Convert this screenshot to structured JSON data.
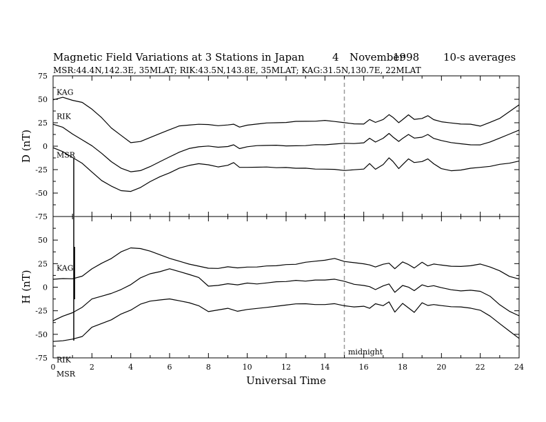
{
  "title": {
    "main": "Magnetic Field Variations at 3 Stations in Japan",
    "date_day": "4",
    "date_month": "November",
    "date_year": "1998",
    "averaging": "10-s averages",
    "stations_line": "MSR:44.4N,142.3E, 35MLAT;   RIK:43.5N,143.8E, 35MLAT;   KAG:31.5N,130.7E, 22MLAT"
  },
  "annotations": {
    "midnight_label": "midnight"
  },
  "chart_data": [
    {
      "type": "line",
      "panel": "D",
      "ylabel": "D (nT)",
      "ylim": [
        -75,
        75
      ],
      "yticks": [
        75,
        50,
        25,
        0,
        -25,
        -50,
        -75
      ],
      "xlim": [
        0,
        24
      ],
      "grid": false,
      "vline": 15,
      "series": [
        {
          "name": "KAG",
          "x": [
            0,
            0.5,
            1,
            1.5,
            2,
            2.5,
            3,
            3.5,
            4,
            4.5,
            5,
            5.5,
            6,
            6.5,
            7,
            7.5,
            8,
            8.5,
            9,
            9.3,
            9.6,
            10,
            10.5,
            11,
            11.5,
            12,
            12.5,
            13,
            13.5,
            14,
            14.5,
            15,
            15.5,
            16,
            16.3,
            16.6,
            17,
            17.3,
            17.5,
            17.8,
            18,
            18.3,
            18.6,
            19,
            19.3,
            19.6,
            20,
            20.5,
            21,
            21.5,
            22,
            22.5,
            23,
            23.5,
            24
          ],
          "y": [
            49,
            52,
            49,
            47,
            40,
            31,
            20,
            12,
            4,
            5,
            9,
            13,
            17,
            21,
            22,
            23,
            23,
            22,
            23,
            24,
            21,
            23,
            24,
            25,
            25,
            25,
            26,
            26,
            26,
            27,
            26,
            25,
            24,
            24,
            29,
            26,
            29,
            34,
            31,
            25,
            28,
            33,
            28,
            29,
            32,
            28,
            26,
            25,
            24,
            24,
            22,
            26,
            30,
            37,
            44
          ]
        },
        {
          "name": "RIK",
          "x": [
            0,
            0.5,
            1,
            1.5,
            2,
            2.5,
            3,
            3.5,
            4,
            4.5,
            5,
            5.5,
            6,
            6.5,
            7,
            7.5,
            8,
            8.5,
            9,
            9.3,
            9.6,
            10,
            10.5,
            11,
            11.5,
            12,
            12.5,
            13,
            13.5,
            14,
            14.5,
            15,
            15.5,
            16,
            16.3,
            16.6,
            17,
            17.3,
            17.5,
            17.8,
            18,
            18.3,
            18.6,
            19,
            19.3,
            19.6,
            20,
            20.5,
            21,
            21.5,
            22,
            22.5,
            23,
            23.5,
            24
          ],
          "y": [
            23,
            20,
            13,
            7,
            1,
            -7,
            -16,
            -23,
            -27,
            -26,
            -22,
            -17,
            -12,
            -7,
            -3,
            -1,
            0,
            -1,
            0,
            2,
            -2,
            0,
            1,
            1,
            1,
            0,
            0,
            0,
            1,
            1,
            2,
            3,
            3,
            4,
            9,
            5,
            9,
            14,
            10,
            5,
            8,
            12,
            8,
            9,
            12,
            8,
            6,
            4,
            3,
            2,
            2,
            5,
            9,
            13,
            17
          ]
        },
        {
          "name": "MSR",
          "x": [
            0,
            0.5,
            1,
            1.5,
            2,
            2.5,
            3,
            3.5,
            4,
            4.5,
            5,
            5.5,
            6,
            6.5,
            7,
            7.5,
            8,
            8.5,
            9,
            9.3,
            9.6,
            10,
            10.5,
            11,
            11.5,
            12,
            12.5,
            13,
            13.5,
            14,
            14.5,
            15,
            15.5,
            16,
            16.3,
            16.6,
            17,
            17.3,
            17.5,
            17.8,
            18,
            18.3,
            18.6,
            19,
            19.3,
            19.6,
            20,
            20.5,
            21,
            21.5,
            22,
            22.5,
            23,
            23.5,
            24
          ],
          "y": [
            -2,
            -6,
            -12,
            -18,
            -27,
            -36,
            -42,
            -47,
            -48,
            -44,
            -38,
            -33,
            -29,
            -24,
            -21,
            -19,
            -20,
            -22,
            -20,
            -17,
            -22,
            -22,
            -22,
            -22,
            -23,
            -23,
            -24,
            -24,
            -25,
            -25,
            -25,
            -26,
            -25,
            -24,
            -18,
            -24,
            -19,
            -12,
            -16,
            -24,
            -20,
            -14,
            -18,
            -17,
            -14,
            -19,
            -24,
            -26,
            -25,
            -23,
            -22,
            -21,
            -19,
            -18,
            -16
          ]
        }
      ]
    },
    {
      "type": "line",
      "panel": "H",
      "ylabel": "H (nT)",
      "ylim": [
        -75,
        75
      ],
      "yticks": [
        75,
        50,
        25,
        0,
        -25,
        -50,
        -75
      ],
      "xlim": [
        0,
        24
      ],
      "xlabel": "Universal Time",
      "xticks": [
        0,
        2,
        4,
        6,
        8,
        10,
        12,
        14,
        16,
        18,
        20,
        22,
        24
      ],
      "grid": false,
      "vline": 15,
      "series": [
        {
          "name": "KAG",
          "x": [
            0,
            0.5,
            1,
            1.5,
            2,
            2.5,
            3,
            3.5,
            4,
            4.5,
            5,
            5.5,
            6,
            6.5,
            7,
            7.5,
            8,
            8.5,
            9,
            9.5,
            10,
            10.5,
            11,
            11.5,
            12,
            12.5,
            13,
            13.5,
            14,
            14.5,
            15,
            15.5,
            16,
            16.3,
            16.6,
            17,
            17.3,
            17.6,
            18,
            18.3,
            18.6,
            19,
            19.3,
            19.6,
            20,
            20.5,
            21,
            21.5,
            22,
            22.5,
            23,
            23.5,
            24
          ],
          "y": [
            8,
            9,
            9,
            12,
            20,
            26,
            31,
            38,
            42,
            41,
            38,
            34,
            30,
            27,
            24,
            22,
            20,
            20,
            22,
            21,
            22,
            22,
            23,
            23,
            24,
            24,
            26,
            27,
            28,
            30,
            27,
            26,
            25,
            24,
            22,
            25,
            26,
            20,
            27,
            24,
            20,
            26,
            22,
            24,
            23,
            22,
            22,
            23,
            25,
            22,
            18,
            12,
            9
          ]
        },
        {
          "name": "RIK",
          "x": [
            0,
            0.5,
            1,
            1.5,
            2,
            2.5,
            3,
            3.5,
            4,
            4.5,
            5,
            5.5,
            6,
            6.5,
            7,
            7.5,
            8,
            8.5,
            9,
            9.5,
            10,
            10.5,
            11,
            11.5,
            12,
            12.5,
            13,
            13.5,
            14,
            14.5,
            15,
            15.5,
            16,
            16.3,
            16.6,
            17,
            17.3,
            17.6,
            18,
            18.3,
            18.6,
            19,
            19.3,
            19.6,
            20,
            20.5,
            21,
            21.5,
            22,
            22.5,
            23,
            23.5,
            24
          ],
          "y": [
            -36,
            -31,
            -27,
            -21,
            -12,
            -9,
            -6,
            -2,
            3,
            10,
            14,
            16,
            19,
            16,
            13,
            10,
            1,
            2,
            4,
            3,
            5,
            4,
            5,
            6,
            6,
            7,
            6,
            7,
            7,
            8,
            6,
            3,
            2,
            1,
            -2,
            2,
            4,
            -5,
            2,
            0,
            -4,
            2,
            0,
            1,
            -1,
            -3,
            -4,
            -3,
            -4,
            -9,
            -18,
            -25,
            -30
          ]
        },
        {
          "name": "MSR",
          "x": [
            0,
            0.5,
            1,
            1.5,
            2,
            2.5,
            3,
            3.5,
            4,
            4.5,
            5,
            5.5,
            6,
            6.5,
            7,
            7.5,
            8,
            8.5,
            9,
            9.5,
            10,
            10.5,
            11,
            11.5,
            12,
            12.5,
            13,
            13.5,
            14,
            14.5,
            15,
            15.5,
            16,
            16.3,
            16.6,
            17,
            17.3,
            17.6,
            18,
            18.3,
            18.6,
            19,
            19.3,
            19.6,
            20,
            20.5,
            21,
            21.5,
            22,
            22.5,
            23,
            23.5,
            24
          ],
          "y": [
            -58,
            -57,
            -55,
            -52,
            -42,
            -38,
            -34,
            -28,
            -24,
            -18,
            -15,
            -14,
            -13,
            -15,
            -17,
            -20,
            -26,
            -24,
            -22,
            -25,
            -23,
            -22,
            -21,
            -20,
            -19,
            -18,
            -18,
            -19,
            -19,
            -18,
            -20,
            -21,
            -20,
            -22,
            -17,
            -19,
            -15,
            -26,
            -17,
            -22,
            -27,
            -17,
            -20,
            -19,
            -20,
            -21,
            -21,
            -22,
            -24,
            -30,
            -38,
            -46,
            -54
          ]
        }
      ]
    }
  ]
}
